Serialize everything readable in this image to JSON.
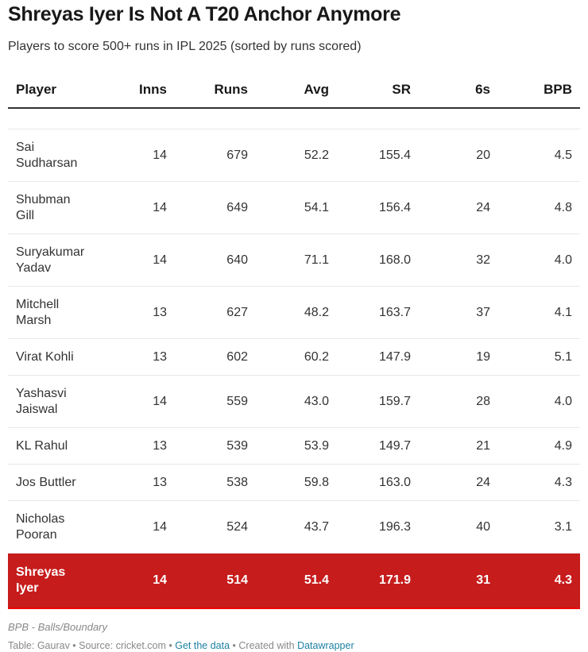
{
  "title": "Shreyas Iyer Is Not A T20 Anchor Anymore",
  "subtitle": "Players to score 500+ runs in IPL 2025 (sorted by runs scored)",
  "columns": [
    "Player",
    "Inns",
    "Runs",
    "Avg",
    "SR",
    "6s",
    "BPB"
  ],
  "rows": [
    {
      "player": "Sai Sudharsan",
      "inns": "14",
      "runs": "679",
      "avg": "52.2",
      "sr": "155.4",
      "sixes": "20",
      "bpb": "4.5"
    },
    {
      "player": "Shubman Gill",
      "inns": "14",
      "runs": "649",
      "avg": "54.1",
      "sr": "156.4",
      "sixes": "24",
      "bpb": "4.8"
    },
    {
      "player": "Suryakumar Yadav",
      "inns": "14",
      "runs": "640",
      "avg": "71.1",
      "sr": "168.0",
      "sixes": "32",
      "bpb": "4.0"
    },
    {
      "player": "Mitchell Marsh",
      "inns": "13",
      "runs": "627",
      "avg": "48.2",
      "sr": "163.7",
      "sixes": "37",
      "bpb": "4.1"
    },
    {
      "player": "Virat Kohli",
      "inns": "13",
      "runs": "602",
      "avg": "60.2",
      "sr": "147.9",
      "sixes": "19",
      "bpb": "5.1"
    },
    {
      "player": "Yashasvi Jaiswal",
      "inns": "14",
      "runs": "559",
      "avg": "43.0",
      "sr": "159.7",
      "sixes": "28",
      "bpb": "4.0"
    },
    {
      "player": "KL Rahul",
      "inns": "13",
      "runs": "539",
      "avg": "53.9",
      "sr": "149.7",
      "sixes": "21",
      "bpb": "4.9"
    },
    {
      "player": "Jos Buttler",
      "inns": "13",
      "runs": "538",
      "avg": "59.8",
      "sr": "163.0",
      "sixes": "24",
      "bpb": "4.3"
    },
    {
      "player": "Nicholas Pooran",
      "inns": "14",
      "runs": "524",
      "avg": "43.7",
      "sr": "196.3",
      "sixes": "40",
      "bpb": "3.1"
    },
    {
      "player": "Shreyas Iyer",
      "inns": "14",
      "runs": "514",
      "avg": "51.4",
      "sr": "171.9",
      "sixes": "31",
      "bpb": "4.3",
      "highlight": true
    }
  ],
  "highlight_color": "#c71c1c",
  "notes": "BPB - Balls/Boundary",
  "footer": {
    "table": "Table: Gaurav",
    "source": "Source: cricket.com",
    "get_data": "Get the data",
    "created": "Created with",
    "datawrapper": "Datawrapper",
    "sep": " • "
  }
}
